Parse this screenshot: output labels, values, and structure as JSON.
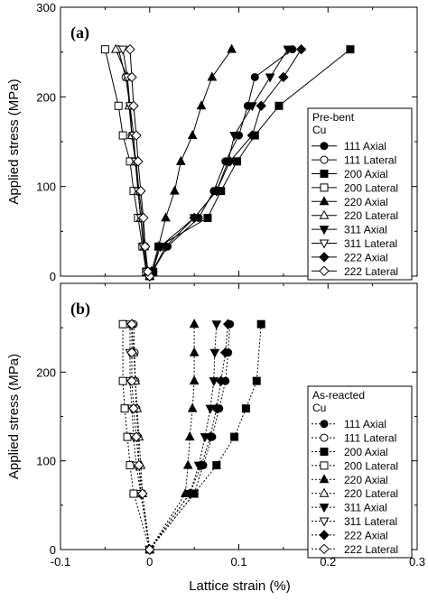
{
  "chart_data": [
    {
      "type": "line",
      "panel_label": "(a)",
      "ylabel": "Applied stress (MPa)",
      "xlabel": "",
      "xlim": [
        -0.1,
        0.3
      ],
      "ylim": [
        0,
        300
      ],
      "yticks": [
        "0",
        "100",
        "200",
        "300"
      ],
      "xticks": [],
      "line_style": "solid",
      "legend": {
        "title_lines": [
          "Pre-bent",
          "Cu"
        ],
        "placement": "right"
      },
      "series": [
        {
          "name": "111 Axial",
          "marker": "circle",
          "filled": true,
          "points": [
            [
              0,
              0
            ],
            [
              0.003,
              5
            ],
            [
              0.02,
              33
            ],
            [
              0.055,
              65
            ],
            [
              0.072,
              95
            ],
            [
              0.085,
              128
            ],
            [
              0.1,
              157
            ],
            [
              0.11,
              190
            ],
            [
              0.118,
              222
            ],
            [
              0.16,
              253
            ]
          ]
        },
        {
          "name": "111 Lateral",
          "marker": "circle",
          "filled": false,
          "points": [
            [
              0,
              0
            ],
            [
              -0.003,
              5
            ],
            [
              -0.005,
              33
            ],
            [
              -0.008,
              65
            ],
            [
              -0.012,
              95
            ],
            [
              -0.015,
              128
            ],
            [
              -0.02,
              157
            ],
            [
              -0.022,
              190
            ],
            [
              -0.027,
              222
            ],
            [
              -0.035,
              253
            ]
          ]
        },
        {
          "name": "200 Axial",
          "marker": "square",
          "filled": true,
          "points": [
            [
              0,
              0
            ],
            [
              0.004,
              5
            ],
            [
              0.01,
              33
            ],
            [
              0.065,
              65
            ],
            [
              0.08,
              95
            ],
            [
              0.098,
              128
            ],
            [
              0.118,
              157
            ],
            [
              0.145,
              190
            ],
            [
              0.225,
              253
            ]
          ]
        },
        {
          "name": "200 Lateral",
          "marker": "square",
          "filled": false,
          "points": [
            [
              0,
              0
            ],
            [
              -0.004,
              5
            ],
            [
              -0.008,
              33
            ],
            [
              -0.013,
              65
            ],
            [
              -0.018,
              95
            ],
            [
              -0.022,
              128
            ],
            [
              -0.03,
              157
            ],
            [
              -0.035,
              190
            ],
            [
              -0.05,
              253
            ]
          ]
        },
        {
          "name": "220 Axial",
          "marker": "triangle-up",
          "filled": true,
          "points": [
            [
              0,
              0
            ],
            [
              0.002,
              5
            ],
            [
              0.01,
              33
            ],
            [
              0.018,
              65
            ],
            [
              0.028,
              95
            ],
            [
              0.035,
              128
            ],
            [
              0.048,
              157
            ],
            [
              0.058,
              190
            ],
            [
              0.07,
              222
            ],
            [
              0.092,
              253
            ]
          ]
        },
        {
          "name": "220 Lateral",
          "marker": "triangle-up",
          "filled": false,
          "points": [
            [
              0,
              0
            ],
            [
              -0.002,
              5
            ],
            [
              -0.006,
              33
            ],
            [
              -0.01,
              65
            ],
            [
              -0.013,
              95
            ],
            [
              -0.016,
              128
            ],
            [
              -0.02,
              157
            ],
            [
              -0.023,
              190
            ],
            [
              -0.025,
              222
            ],
            [
              -0.038,
              253
            ]
          ]
        },
        {
          "name": "311 Axial",
          "marker": "triangle-down",
          "filled": true,
          "points": [
            [
              0,
              0
            ],
            [
              0.003,
              5
            ],
            [
              0.012,
              33
            ],
            [
              0.05,
              65
            ],
            [
              0.075,
              95
            ],
            [
              0.088,
              128
            ],
            [
              0.095,
              157
            ],
            [
              0.115,
              190
            ],
            [
              0.135,
              222
            ],
            [
              0.155,
              253
            ]
          ]
        },
        {
          "name": "311 Lateral",
          "marker": "triangle-down",
          "filled": false,
          "points": [
            [
              0,
              0
            ],
            [
              -0.003,
              5
            ],
            [
              -0.007,
              33
            ],
            [
              -0.01,
              65
            ],
            [
              -0.013,
              95
            ],
            [
              -0.016,
              128
            ],
            [
              -0.018,
              157
            ],
            [
              -0.022,
              190
            ],
            [
              -0.025,
              222
            ],
            [
              -0.03,
              253
            ]
          ]
        },
        {
          "name": "222 Axial",
          "marker": "diamond",
          "filled": true,
          "points": [
            [
              0,
              0
            ],
            [
              0.003,
              5
            ],
            [
              0.018,
              33
            ],
            [
              0.05,
              65
            ],
            [
              0.075,
              95
            ],
            [
              0.09,
              128
            ],
            [
              0.115,
              157
            ],
            [
              0.125,
              190
            ],
            [
              0.15,
              222
            ],
            [
              0.17,
              253
            ]
          ]
        },
        {
          "name": "222 Lateral",
          "marker": "diamond",
          "filled": false,
          "points": [
            [
              0,
              0
            ],
            [
              -0.002,
              5
            ],
            [
              -0.005,
              33
            ],
            [
              -0.007,
              65
            ],
            [
              -0.01,
              95
            ],
            [
              -0.013,
              128
            ],
            [
              -0.015,
              157
            ],
            [
              -0.018,
              190
            ],
            [
              -0.02,
              222
            ],
            [
              -0.022,
              253
            ]
          ]
        }
      ]
    },
    {
      "type": "line",
      "panel_label": "(b)",
      "ylabel": "Applied stress (MPa)",
      "xlabel": "Lattice strain (%)",
      "xlim": [
        -0.1,
        0.3
      ],
      "ylim": [
        0,
        300
      ],
      "yticks": [
        "0",
        "100",
        "200"
      ],
      "xticks": [
        "-0.1",
        "0",
        "0.1",
        "0.2",
        "0.3"
      ],
      "line_style": "dotted",
      "legend": {
        "title_lines": [
          "As-reacted",
          "Cu"
        ],
        "placement": "right"
      },
      "series": [
        {
          "name": "111 Axial",
          "marker": "circle",
          "filled": true,
          "points": [
            [
              0,
              0
            ],
            [
              0.05,
              63
            ],
            [
              0.06,
              95
            ],
            [
              0.07,
              127
            ],
            [
              0.078,
              159
            ],
            [
              0.085,
              190
            ],
            [
              0.088,
              222
            ],
            [
              0.09,
              254
            ]
          ]
        },
        {
          "name": "111 Lateral",
          "marker": "circle",
          "filled": false,
          "points": [
            [
              0,
              0
            ],
            [
              -0.01,
              63
            ],
            [
              -0.012,
              95
            ],
            [
              -0.013,
              127
            ],
            [
              -0.015,
              159
            ],
            [
              -0.016,
              190
            ],
            [
              -0.017,
              222
            ],
            [
              -0.018,
              254
            ]
          ]
        },
        {
          "name": "200 Axial",
          "marker": "square",
          "filled": true,
          "points": [
            [
              0,
              0
            ],
            [
              0.05,
              63
            ],
            [
              0.075,
              95
            ],
            [
              0.095,
              127
            ],
            [
              0.108,
              159
            ],
            [
              0.12,
              190
            ],
            [
              0.125,
              254
            ]
          ]
        },
        {
          "name": "200 Lateral",
          "marker": "square",
          "filled": false,
          "points": [
            [
              0,
              0
            ],
            [
              -0.018,
              63
            ],
            [
              -0.022,
              95
            ],
            [
              -0.025,
              127
            ],
            [
              -0.028,
              159
            ],
            [
              -0.03,
              190
            ],
            [
              -0.03,
              254
            ]
          ]
        },
        {
          "name": "220 Axial",
          "marker": "triangle-up",
          "filled": true,
          "points": [
            [
              0,
              0
            ],
            [
              0.04,
              63
            ],
            [
              0.043,
              95
            ],
            [
              0.045,
              127
            ],
            [
              0.048,
              159
            ],
            [
              0.05,
              190
            ],
            [
              0.05,
              222
            ],
            [
              0.05,
              254
            ]
          ]
        },
        {
          "name": "220 Lateral",
          "marker": "triangle-up",
          "filled": false,
          "points": [
            [
              0,
              0
            ],
            [
              -0.008,
              63
            ],
            [
              -0.01,
              95
            ],
            [
              -0.012,
              127
            ],
            [
              -0.014,
              159
            ],
            [
              -0.016,
              190
            ],
            [
              -0.018,
              222
            ],
            [
              -0.02,
              254
            ]
          ]
        },
        {
          "name": "311 Axial",
          "marker": "triangle-down",
          "filled": true,
          "points": [
            [
              0,
              0
            ],
            [
              0.045,
              63
            ],
            [
              0.055,
              95
            ],
            [
              0.062,
              127
            ],
            [
              0.068,
              159
            ],
            [
              0.072,
              190
            ],
            [
              0.073,
              222
            ],
            [
              0.075,
              254
            ]
          ]
        },
        {
          "name": "311 Lateral",
          "marker": "triangle-down",
          "filled": false,
          "points": [
            [
              0,
              0
            ],
            [
              -0.01,
              63
            ],
            [
              -0.015,
              95
            ],
            [
              -0.018,
              127
            ],
            [
              -0.02,
              159
            ],
            [
              -0.022,
              190
            ],
            [
              -0.022,
              222
            ],
            [
              -0.022,
              254
            ]
          ]
        },
        {
          "name": "222 Axial",
          "marker": "diamond",
          "filled": true,
          "points": [
            [
              0,
              0
            ],
            [
              0.045,
              63
            ],
            [
              0.058,
              95
            ],
            [
              0.068,
              127
            ],
            [
              0.075,
              159
            ],
            [
              0.08,
              190
            ],
            [
              0.085,
              222
            ],
            [
              0.088,
              254
            ]
          ]
        },
        {
          "name": "222 Lateral",
          "marker": "diamond",
          "filled": false,
          "points": [
            [
              0,
              0
            ],
            [
              -0.008,
              63
            ],
            [
              -0.012,
              95
            ],
            [
              -0.015,
              127
            ],
            [
              -0.018,
              159
            ],
            [
              -0.02,
              190
            ],
            [
              -0.02,
              222
            ],
            [
              -0.02,
              254
            ]
          ]
        }
      ]
    }
  ]
}
